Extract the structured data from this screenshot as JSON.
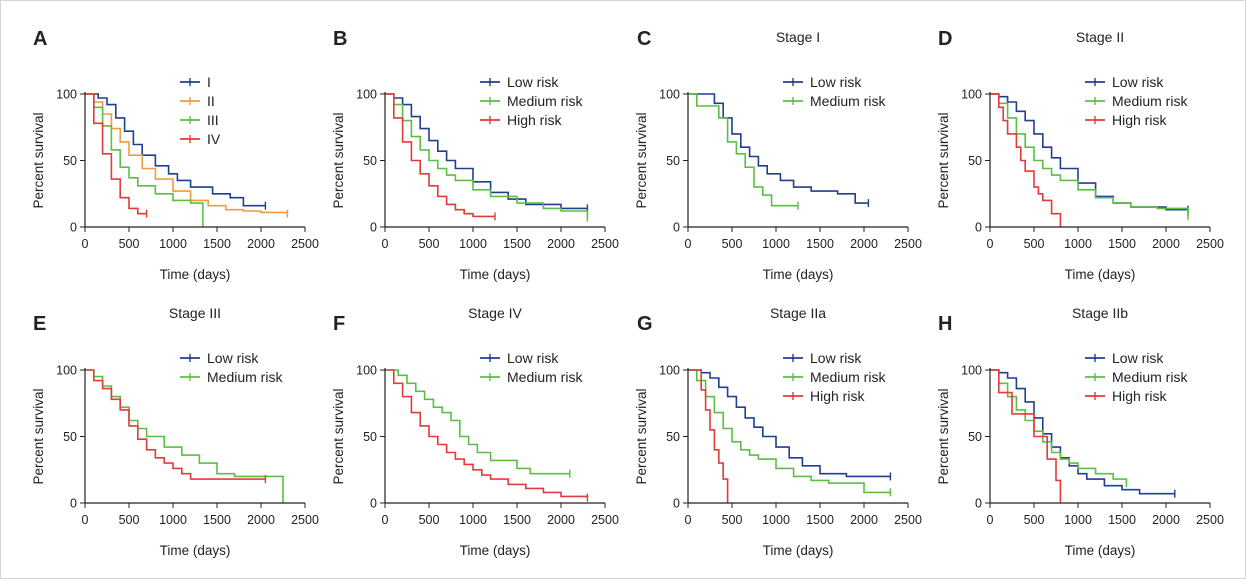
{
  "chart_data": [
    {
      "type": "line",
      "panel": "A",
      "title": "",
      "xlabel": "Time (days)",
      "ylabel": "Percent survival",
      "xlim": [
        0,
        2500
      ],
      "ylim": [
        0,
        100
      ],
      "xticks": [
        0,
        500,
        1000,
        1500,
        2000,
        2500
      ],
      "yticks": [
        0,
        50,
        100
      ],
      "legend_position": "top-right",
      "series": [
        {
          "name": "I",
          "color": "#1f3f8f",
          "x": [
            0,
            150,
            250,
            350,
            450,
            550,
            650,
            800,
            950,
            1050,
            1200,
            1450,
            1650,
            1800,
            2050
          ],
          "y": [
            100,
            97,
            92,
            82,
            72,
            62,
            54,
            46,
            40,
            35,
            30,
            25,
            22,
            16,
            16
          ]
        },
        {
          "name": "II",
          "color": "#f39a3e",
          "x": [
            0,
            100,
            200,
            300,
            400,
            500,
            650,
            800,
            1000,
            1200,
            1400,
            1600,
            1800,
            2000,
            2300
          ],
          "y": [
            100,
            94,
            85,
            74,
            64,
            54,
            44,
            36,
            27,
            20,
            16,
            13,
            12,
            11,
            10
          ]
        },
        {
          "name": "III",
          "color": "#5cbf44",
          "x": [
            0,
            100,
            200,
            300,
            400,
            500,
            600,
            800,
            1000,
            1200,
            1340,
            1340
          ],
          "y": [
            100,
            90,
            76,
            58,
            45,
            37,
            31,
            25,
            20,
            18,
            17,
            0
          ]
        },
        {
          "name": "IV",
          "color": "#e53a3a",
          "x": [
            0,
            100,
            200,
            300,
            400,
            500,
            600,
            700
          ],
          "y": [
            100,
            78,
            55,
            36,
            22,
            14,
            10,
            10
          ]
        }
      ]
    },
    {
      "type": "line",
      "panel": "B",
      "title": "",
      "xlabel": "Time (days)",
      "ylabel": "Percent survival",
      "xlim": [
        0,
        2500
      ],
      "ylim": [
        0,
        100
      ],
      "xticks": [
        0,
        500,
        1000,
        1500,
        2000,
        2500
      ],
      "yticks": [
        0,
        50,
        100
      ],
      "legend_position": "top-right",
      "series": [
        {
          "name": "Low risk",
          "color": "#1f3f8f",
          "x": [
            0,
            100,
            200,
            300,
            400,
            500,
            600,
            700,
            800,
            1000,
            1200,
            1400,
            1600,
            2000,
            2300
          ],
          "y": [
            100,
            97,
            92,
            83,
            74,
            65,
            57,
            50,
            44,
            34,
            26,
            21,
            17,
            14,
            14
          ]
        },
        {
          "name": "Medium risk",
          "color": "#5cbf44",
          "x": [
            0,
            100,
            200,
            300,
            400,
            500,
            600,
            700,
            800,
            1000,
            1200,
            1500,
            1800,
            2000,
            2300
          ],
          "y": [
            100,
            92,
            80,
            68,
            58,
            50,
            44,
            39,
            35,
            28,
            23,
            18,
            14,
            12,
            7
          ]
        },
        {
          "name": "High risk",
          "color": "#e53a3a",
          "x": [
            0,
            100,
            200,
            300,
            400,
            500,
            600,
            700,
            800,
            900,
            1000,
            1250
          ],
          "y": [
            100,
            82,
            64,
            50,
            40,
            31,
            23,
            17,
            13,
            10,
            8,
            8
          ]
        }
      ]
    },
    {
      "type": "line",
      "panel": "C",
      "title": "Stage I",
      "xlabel": "Time (days)",
      "ylabel": "Percent survival",
      "xlim": [
        0,
        2500
      ],
      "ylim": [
        0,
        100
      ],
      "xticks": [
        0,
        500,
        1000,
        1500,
        2000,
        2500
      ],
      "yticks": [
        0,
        50,
        100
      ],
      "legend_position": "top-right",
      "series": [
        {
          "name": "Low risk",
          "color": "#1f3f8f",
          "x": [
            0,
            200,
            300,
            400,
            500,
            600,
            700,
            800,
            900,
            1050,
            1200,
            1400,
            1700,
            1900,
            2050
          ],
          "y": [
            100,
            100,
            93,
            82,
            70,
            60,
            53,
            46,
            40,
            35,
            30,
            27,
            25,
            18,
            18
          ]
        },
        {
          "name": "Medium risk",
          "color": "#5cbf44",
          "x": [
            0,
            100,
            250,
            350,
            450,
            550,
            650,
            750,
            850,
            950,
            1250
          ],
          "y": [
            100,
            91,
            91,
            82,
            64,
            55,
            45,
            30,
            24,
            16,
            16
          ]
        }
      ]
    },
    {
      "type": "line",
      "panel": "D",
      "title": "Stage II",
      "xlabel": "Time (days)",
      "ylabel": "Percent survival",
      "xlim": [
        0,
        2500
      ],
      "ylim": [
        0,
        100
      ],
      "xticks": [
        0,
        500,
        1000,
        1500,
        2000,
        2500
      ],
      "yticks": [
        0,
        50,
        100
      ],
      "legend_position": "top-right",
      "series": [
        {
          "name": "Low risk",
          "color": "#1f3f8f",
          "x": [
            0,
            100,
            200,
            300,
            400,
            500,
            600,
            700,
            800,
            1000,
            1200,
            1400,
            1600,
            2000,
            2250
          ],
          "y": [
            100,
            98,
            94,
            87,
            80,
            70,
            60,
            52,
            44,
            33,
            23,
            18,
            15,
            13,
            13
          ]
        },
        {
          "name": "Medium risk",
          "color": "#5cbf44",
          "x": [
            0,
            100,
            200,
            300,
            400,
            500,
            600,
            700,
            800,
            1000,
            1200,
            1400,
            1600,
            1900,
            2250
          ],
          "y": [
            100,
            93,
            82,
            70,
            60,
            50,
            44,
            39,
            35,
            28,
            22,
            18,
            15,
            14,
            8
          ]
        },
        {
          "name": "High risk",
          "color": "#e53a3a",
          "x": [
            0,
            100,
            150,
            200,
            300,
            350,
            400,
            500,
            550,
            600,
            700,
            800,
            800
          ],
          "y": [
            100,
            90,
            80,
            70,
            60,
            50,
            42,
            30,
            25,
            20,
            10,
            5,
            0
          ]
        }
      ]
    },
    {
      "type": "line",
      "panel": "E",
      "title": "Stage III",
      "xlabel": "Time (days)",
      "ylabel": "Percent survival",
      "xlim": [
        0,
        2500
      ],
      "ylim": [
        0,
        100
      ],
      "xticks": [
        0,
        500,
        1000,
        1500,
        2000,
        2500
      ],
      "yticks": [
        0,
        50,
        100
      ],
      "legend_position": "top-right",
      "series": [
        {
          "name": "Low risk",
          "color": "#1f3f8f",
          "x": [],
          "y": []
        },
        {
          "name": "Medium risk",
          "color": "#5cbf44",
          "x": [
            0,
            100,
            200,
            300,
            400,
            500,
            600,
            700,
            900,
            1100,
            1300,
            1500,
            1700,
            2000,
            2250,
            2250
          ],
          "y": [
            100,
            95,
            88,
            80,
            72,
            62,
            56,
            50,
            42,
            36,
            30,
            22,
            20,
            20,
            20,
            0
          ]
        },
        {
          "name": "",
          "color": "#e53a3a",
          "x": [
            0,
            100,
            200,
            300,
            400,
            500,
            600,
            700,
            800,
            900,
            1000,
            1100,
            1200,
            1500,
            2050
          ],
          "y": [
            100,
            92,
            86,
            78,
            70,
            58,
            48,
            40,
            34,
            30,
            26,
            22,
            18,
            18,
            18
          ]
        }
      ]
    },
    {
      "type": "line",
      "panel": "F",
      "title": "Stage IV",
      "xlabel": "Time (days)",
      "ylabel": "Percent survival",
      "xlim": [
        0,
        2500
      ],
      "ylim": [
        0,
        100
      ],
      "xticks": [
        0,
        500,
        1000,
        1500,
        2000,
        2500
      ],
      "yticks": [
        0,
        50,
        100
      ],
      "legend_position": "top-right",
      "series": [
        {
          "name": "Low risk",
          "color": "#1f3f8f",
          "x": [],
          "y": []
        },
        {
          "name": "Medium risk",
          "color": "#5cbf44",
          "x": [
            0,
            150,
            250,
            350,
            450,
            550,
            650,
            750,
            850,
            950,
            1050,
            1200,
            1500,
            1650,
            1900,
            2100
          ],
          "y": [
            100,
            96,
            90,
            84,
            78,
            72,
            68,
            62,
            50,
            44,
            38,
            32,
            26,
            22,
            22,
            22
          ]
        },
        {
          "name": "",
          "color": "#e53a3a",
          "x": [
            0,
            100,
            200,
            300,
            400,
            500,
            600,
            700,
            800,
            900,
            1000,
            1100,
            1200,
            1400,
            1600,
            1800,
            2000,
            2300
          ],
          "y": [
            100,
            90,
            80,
            68,
            58,
            50,
            44,
            38,
            33,
            29,
            25,
            21,
            18,
            14,
            11,
            8,
            5,
            4
          ]
        }
      ]
    },
    {
      "type": "line",
      "panel": "G",
      "title": "Stage IIa",
      "xlabel": "Time (days)",
      "ylabel": "Percent survival",
      "xlim": [
        0,
        2500
      ],
      "ylim": [
        0,
        100
      ],
      "xticks": [
        0,
        500,
        1000,
        1500,
        2000,
        2500
      ],
      "yticks": [
        0,
        50,
        100
      ],
      "legend_position": "top-right",
      "series": [
        {
          "name": "Low risk",
          "color": "#1f3f8f",
          "x": [
            0,
            150,
            250,
            350,
            450,
            550,
            650,
            750,
            850,
            1000,
            1150,
            1300,
            1500,
            1800,
            2000,
            2300
          ],
          "y": [
            100,
            98,
            94,
            87,
            80,
            72,
            64,
            57,
            50,
            42,
            34,
            28,
            22,
            20,
            20,
            20
          ]
        },
        {
          "name": "Medium risk",
          "color": "#5cbf44",
          "x": [
            0,
            100,
            200,
            300,
            400,
            500,
            600,
            700,
            800,
            1000,
            1200,
            1400,
            1600,
            1900,
            2000,
            2300
          ],
          "y": [
            100,
            92,
            80,
            68,
            56,
            46,
            40,
            36,
            33,
            26,
            20,
            17,
            15,
            15,
            8,
            8
          ]
        },
        {
          "name": "High risk",
          "color": "#e53a3a",
          "x": [
            0,
            150,
            200,
            250,
            300,
            350,
            400,
            450,
            450
          ],
          "y": [
            100,
            85,
            70,
            55,
            40,
            30,
            18,
            5,
            0
          ]
        }
      ]
    },
    {
      "type": "line",
      "panel": "H",
      "title": "Stage IIb",
      "xlabel": "Time (days)",
      "ylabel": "Percent survival",
      "xlim": [
        0,
        2500
      ],
      "ylim": [
        0,
        100
      ],
      "xticks": [
        0,
        500,
        1000,
        1500,
        2000,
        2500
      ],
      "yticks": [
        0,
        50,
        100
      ],
      "legend_position": "top-right",
      "series": [
        {
          "name": "Low risk",
          "color": "#1f3f8f",
          "x": [
            0,
            100,
            200,
            300,
            400,
            500,
            600,
            700,
            800,
            900,
            1000,
            1100,
            1300,
            1500,
            1700,
            2100
          ],
          "y": [
            100,
            98,
            94,
            86,
            76,
            64,
            52,
            42,
            34,
            28,
            22,
            18,
            13,
            10,
            7,
            7
          ]
        },
        {
          "name": "Medium risk",
          "color": "#5cbf44",
          "x": [
            0,
            100,
            200,
            300,
            400,
            500,
            600,
            700,
            800,
            900,
            1000,
            1200,
            1400,
            1550
          ],
          "y": [
            100,
            90,
            80,
            70,
            62,
            54,
            46,
            38,
            33,
            30,
            26,
            22,
            18,
            15
          ]
        },
        {
          "name": "High risk",
          "color": "#e53a3a",
          "x": [
            0,
            100,
            150,
            250,
            400,
            500,
            650,
            750,
            800,
            800
          ],
          "y": [
            100,
            83,
            83,
            67,
            67,
            50,
            33,
            17,
            17,
            0
          ]
        }
      ]
    }
  ]
}
